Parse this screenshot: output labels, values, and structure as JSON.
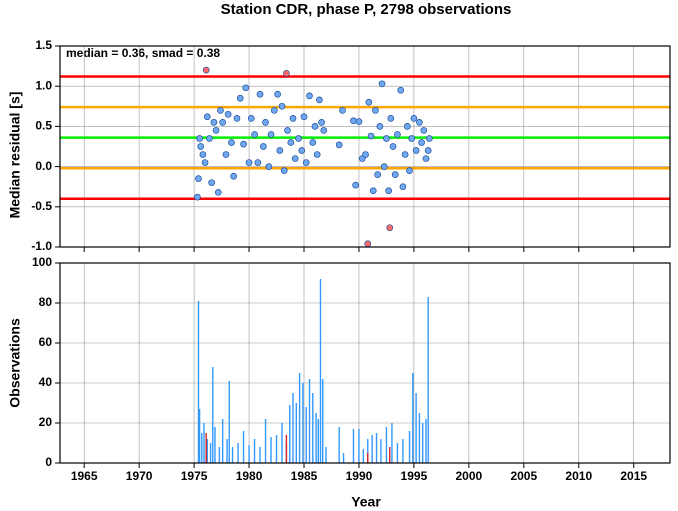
{
  "chart_data": [
    {
      "type": "scatter",
      "title": "Station CDR, phase P, 2798 observations",
      "y_label": "Median residual [s]",
      "annotation": "median = 0.36, smad = 0.38",
      "xlim": [
        1962.8,
        2018.3
      ],
      "xticks": [
        1965,
        1970,
        1975,
        1980,
        1985,
        1990,
        1995,
        2000,
        2005,
        2010,
        2015
      ],
      "ylim": [
        -1.0,
        1.5
      ],
      "yticks": [
        {
          "value": -1.0,
          "label": "-1.0"
        },
        -0.5,
        {
          "value": 0.0,
          "label": "0.0"
        },
        0.5,
        {
          "value": 1.0,
          "label": "1.0"
        },
        1.5
      ],
      "grid": true,
      "hlines": [
        {
          "value": 1.12,
          "color": "#ff0000"
        },
        {
          "value": 0.74,
          "color": "#ffa500"
        },
        {
          "value": 0.36,
          "color": "#00ee00"
        },
        {
          "value": -0.02,
          "color": "#ffa500"
        },
        {
          "value": -0.4,
          "color": "#ff0000"
        }
      ],
      "series": [
        {
          "color": "#6fa8f0",
          "x": [
            1975.3,
            1975.4,
            1975.5,
            1975.6,
            1975.8,
            1976.0,
            1976.2,
            1976.4,
            1976.6,
            1976.8,
            1977.0,
            1977.2,
            1977.4,
            1977.6,
            1977.9,
            1978.1,
            1978.4,
            1978.6,
            1978.9,
            1979.2,
            1979.5,
            1979.7,
            1980.0,
            1980.2,
            1980.5,
            1980.8,
            1981.0,
            1981.3,
            1981.5,
            1981.8,
            1982.0,
            1982.3,
            1982.6,
            1982.8,
            1983.0,
            1983.2,
            1983.5,
            1983.8,
            1984.0,
            1984.2,
            1984.5,
            1984.8,
            1985.0,
            1985.2,
            1985.5,
            1985.8,
            1986.0,
            1986.2,
            1986.4,
            1986.6,
            1986.8,
            1988.2,
            1988.5,
            1989.5,
            1989.7,
            1990.0,
            1990.3,
            1990.6,
            1990.9,
            1991.1,
            1991.3,
            1991.5,
            1991.7,
            1991.9,
            1992.1,
            1992.3,
            1992.5,
            1992.7,
            1992.9,
            1993.1,
            1993.3,
            1993.5,
            1993.8,
            1994.0,
            1994.2,
            1994.4,
            1994.6,
            1994.8,
            1995.0,
            1995.2,
            1995.5,
            1995.7,
            1995.9,
            1996.1,
            1996.3,
            1996.4
          ],
          "values": [
            -0.38,
            -0.15,
            0.35,
            0.25,
            0.15,
            0.05,
            0.62,
            0.35,
            -0.2,
            0.55,
            0.45,
            -0.32,
            0.7,
            0.55,
            0.15,
            0.65,
            0.3,
            -0.12,
            0.6,
            0.85,
            0.28,
            0.98,
            0.05,
            0.6,
            0.4,
            0.05,
            0.9,
            0.25,
            0.55,
            0.0,
            0.4,
            0.7,
            0.9,
            0.2,
            0.75,
            -0.05,
            0.45,
            0.3,
            0.6,
            0.1,
            0.35,
            0.2,
            0.62,
            0.05,
            0.88,
            0.3,
            0.5,
            0.15,
            0.83,
            0.55,
            0.45,
            0.27,
            0.7,
            0.57,
            -0.23,
            0.56,
            0.1,
            0.15,
            0.8,
            0.38,
            -0.3,
            0.7,
            -0.1,
            0.5,
            1.03,
            0.0,
            0.35,
            -0.3,
            0.6,
            0.25,
            -0.1,
            0.4,
            0.95,
            -0.25,
            0.15,
            0.5,
            -0.05,
            0.35,
            0.6,
            0.2,
            0.55,
            0.3,
            0.45,
            0.1,
            0.2,
            0.35
          ]
        },
        {
          "color": "#ff6b6b",
          "x": [
            1976.1,
            1983.4,
            1990.8,
            1992.8
          ],
          "values": [
            1.2,
            1.16,
            -0.96,
            -0.76
          ]
        }
      ]
    },
    {
      "type": "bar",
      "y_label": "Observations",
      "x_label": "Year",
      "xlim": [
        1962.8,
        2018.3
      ],
      "xticks": [
        1965,
        1970,
        1975,
        1980,
        1985,
        1990,
        1995,
        2000,
        2005,
        2010,
        2015
      ],
      "ylim": [
        0,
        100
      ],
      "yticks": [
        0,
        20,
        40,
        60,
        80,
        100
      ],
      "grid": true,
      "series": [
        {
          "color": "#3399ff",
          "x": [
            1975.4,
            1975.5,
            1975.7,
            1975.9,
            1976.2,
            1976.5,
            1976.7,
            1976.9,
            1977.3,
            1977.6,
            1978.0,
            1978.2,
            1978.5,
            1979.0,
            1979.5,
            1980.0,
            1980.5,
            1981.0,
            1981.5,
            1982.0,
            1982.5,
            1983.0,
            1983.4,
            1983.7,
            1984.0,
            1984.3,
            1984.6,
            1984.9,
            1985.2,
            1985.5,
            1985.8,
            1986.1,
            1986.3,
            1986.5,
            1986.7,
            1987.0,
            1988.2,
            1988.6,
            1989.5,
            1990.0,
            1990.4,
            1990.8,
            1991.2,
            1991.6,
            1992.0,
            1992.5,
            1993.0,
            1993.5,
            1994.0,
            1994.6,
            1994.9,
            1995.2,
            1995.5,
            1995.8,
            1996.1,
            1996.3
          ],
          "values": [
            81,
            27,
            15,
            20,
            12,
            10,
            48,
            18,
            8,
            22,
            12,
            41,
            8,
            10,
            16,
            9,
            12,
            8,
            22,
            13,
            14,
            20,
            10,
            29,
            35,
            30,
            45,
            40,
            28,
            42,
            35,
            25,
            22,
            92,
            42,
            8,
            18,
            5,
            17,
            17,
            7,
            12,
            14,
            15,
            12,
            18,
            20,
            10,
            12,
            16,
            45,
            35,
            25,
            20,
            22,
            83
          ]
        },
        {
          "color": "#dd2222",
          "x": [
            1976.1,
            1983.4,
            1990.8,
            1992.8
          ],
          "values": [
            15,
            14,
            5,
            8
          ]
        }
      ]
    }
  ]
}
